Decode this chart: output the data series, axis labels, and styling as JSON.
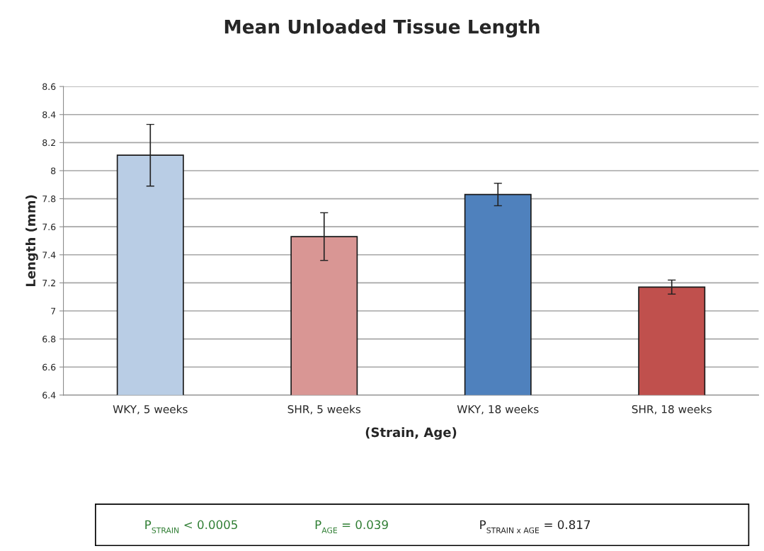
{
  "chart_data": {
    "type": "bar",
    "title": "Mean Unloaded Tissue Length",
    "xlabel": "(Strain, Age)",
    "ylabel": "Length (mm)",
    "categories": [
      "WKY, 5 weeks",
      "SHR, 5 weeks",
      "WKY, 18 weeks",
      "SHR, 18 weeks"
    ],
    "values": [
      8.11,
      7.53,
      7.83,
      7.17
    ],
    "errors": [
      0.22,
      0.17,
      0.08,
      0.05
    ],
    "colors": [
      "#b9cde5",
      "#d99694",
      "#4f81bd",
      "#c0504d"
    ],
    "ylim": [
      6.4,
      8.6
    ],
    "yticks": [
      6.4,
      6.6,
      6.8,
      {
        "value": 7.0,
        "label": "7"
      },
      7.2,
      7.4,
      7.6,
      7.8,
      {
        "value": 8.0,
        "label": "8"
      },
      8.2,
      8.4,
      8.6
    ],
    "grid": "y",
    "annotations": [
      "P$_{STRAIN}$ < 0.0005",
      "P$_{AGE}$ = 0.039",
      "P$_{STRAIN x AGE}$ = 0.817"
    ]
  }
}
